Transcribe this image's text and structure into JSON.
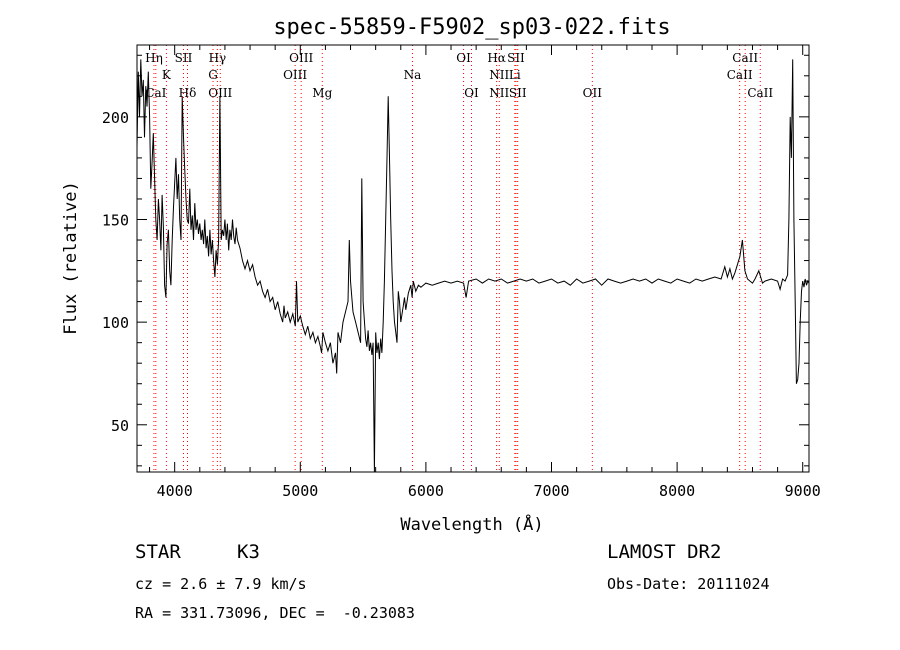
{
  "chart_data": {
    "type": "line",
    "title": "spec-55859-F5902_sp03-022.fits",
    "xlabel": "Wavelength (Å)",
    "ylabel": "Flux (relative)",
    "xlim": [
      3700,
      9050
    ],
    "ylim": [
      27,
      235
    ],
    "x_ticks": [
      4000,
      5000,
      6000,
      7000,
      8000,
      9000
    ],
    "y_ticks": [
      50,
      100,
      150,
      200
    ],
    "grid": false,
    "line_color": "#000000",
    "marker_color": "#ff0000",
    "spectrum": [
      [
        3700,
        185
      ],
      [
        3710,
        222
      ],
      [
        3720,
        200
      ],
      [
        3730,
        228
      ],
      [
        3740,
        210
      ],
      [
        3750,
        218
      ],
      [
        3760,
        190
      ],
      [
        3770,
        215
      ],
      [
        3780,
        205
      ],
      [
        3790,
        222
      ],
      [
        3800,
        200
      ],
      [
        3810,
        165
      ],
      [
        3820,
        178
      ],
      [
        3830,
        192
      ],
      [
        3840,
        170
      ],
      [
        3850,
        150
      ],
      [
        3860,
        140
      ],
      [
        3870,
        160
      ],
      [
        3880,
        150
      ],
      [
        3890,
        135
      ],
      [
        3900,
        162
      ],
      [
        3910,
        146
      ],
      [
        3920,
        118
      ],
      [
        3930,
        112
      ],
      [
        3940,
        138
      ],
      [
        3950,
        145
      ],
      [
        3960,
        125
      ],
      [
        3970,
        118
      ],
      [
        3980,
        140
      ],
      [
        3990,
        155
      ],
      [
        4000,
        168
      ],
      [
        4010,
        180
      ],
      [
        4020,
        160
      ],
      [
        4030,
        172
      ],
      [
        4040,
        150
      ],
      [
        4050,
        140
      ],
      [
        4060,
        210
      ],
      [
        4070,
        190
      ],
      [
        4080,
        175
      ],
      [
        4090,
        160
      ],
      [
        4100,
        150
      ],
      [
        4110,
        148
      ],
      [
        4120,
        165
      ],
      [
        4130,
        145
      ],
      [
        4140,
        152
      ],
      [
        4150,
        140
      ],
      [
        4160,
        158
      ],
      [
        4170,
        145
      ],
      [
        4180,
        150
      ],
      [
        4190,
        143
      ],
      [
        4200,
        148
      ],
      [
        4210,
        140
      ],
      [
        4220,
        145
      ],
      [
        4230,
        138
      ],
      [
        4240,
        150
      ],
      [
        4250,
        136
      ],
      [
        4260,
        142
      ],
      [
        4270,
        132
      ],
      [
        4280,
        145
      ],
      [
        4290,
        133
      ],
      [
        4300,
        140
      ],
      [
        4310,
        130
      ],
      [
        4320,
        122
      ],
      [
        4330,
        135
      ],
      [
        4340,
        128
      ],
      [
        4350,
        140
      ],
      [
        4360,
        210
      ],
      [
        4370,
        140
      ],
      [
        4380,
        145
      ],
      [
        4390,
        142
      ],
      [
        4400,
        150
      ],
      [
        4410,
        140
      ],
      [
        4420,
        148
      ],
      [
        4430,
        135
      ],
      [
        4440,
        145
      ],
      [
        4450,
        140
      ],
      [
        4460,
        150
      ],
      [
        4470,
        142
      ],
      [
        4480,
        138
      ],
      [
        4490,
        146
      ],
      [
        4500,
        140
      ],
      [
        4520,
        136
      ],
      [
        4540,
        130
      ],
      [
        4560,
        126
      ],
      [
        4580,
        130
      ],
      [
        4600,
        125
      ],
      [
        4620,
        128
      ],
      [
        4640,
        122
      ],
      [
        4660,
        118
      ],
      [
        4680,
        120
      ],
      [
        4700,
        115
      ],
      [
        4720,
        112
      ],
      [
        4740,
        116
      ],
      [
        4760,
        110
      ],
      [
        4780,
        112
      ],
      [
        4800,
        106
      ],
      [
        4820,
        110
      ],
      [
        4840,
        104
      ],
      [
        4860,
        100
      ],
      [
        4870,
        108
      ],
      [
        4880,
        102
      ],
      [
        4900,
        105
      ],
      [
        4920,
        100
      ],
      [
        4940,
        104
      ],
      [
        4960,
        98
      ],
      [
        4970,
        120
      ],
      [
        4980,
        100
      ],
      [
        5000,
        103
      ],
      [
        5020,
        98
      ],
      [
        5040,
        94
      ],
      [
        5060,
        98
      ],
      [
        5080,
        92
      ],
      [
        5100,
        95
      ],
      [
        5120,
        90
      ],
      [
        5140,
        93
      ],
      [
        5160,
        88
      ],
      [
        5170,
        85
      ],
      [
        5180,
        95
      ],
      [
        5200,
        90
      ],
      [
        5220,
        86
      ],
      [
        5240,
        90
      ],
      [
        5260,
        80
      ],
      [
        5280,
        85
      ],
      [
        5290,
        75
      ],
      [
        5300,
        95
      ],
      [
        5320,
        90
      ],
      [
        5340,
        100
      ],
      [
        5360,
        105
      ],
      [
        5380,
        110
      ],
      [
        5390,
        140
      ],
      [
        5400,
        120
      ],
      [
        5420,
        105
      ],
      [
        5440,
        100
      ],
      [
        5460,
        95
      ],
      [
        5480,
        90
      ],
      [
        5490,
        170
      ],
      [
        5500,
        110
      ],
      [
        5520,
        92
      ],
      [
        5530,
        88
      ],
      [
        5540,
        96
      ],
      [
        5550,
        86
      ],
      [
        5560,
        90
      ],
      [
        5570,
        84
      ],
      [
        5580,
        90
      ],
      [
        5590,
        27
      ],
      [
        5600,
        95
      ],
      [
        5610,
        85
      ],
      [
        5620,
        90
      ],
      [
        5630,
        82
      ],
      [
        5640,
        92
      ],
      [
        5650,
        85
      ],
      [
        5660,
        100
      ],
      [
        5670,
        120
      ],
      [
        5680,
        150
      ],
      [
        5690,
        180
      ],
      [
        5700,
        210
      ],
      [
        5710,
        180
      ],
      [
        5720,
        150
      ],
      [
        5730,
        125
      ],
      [
        5740,
        110
      ],
      [
        5750,
        100
      ],
      [
        5760,
        95
      ],
      [
        5770,
        90
      ],
      [
        5780,
        115
      ],
      [
        5790,
        110
      ],
      [
        5800,
        100
      ],
      [
        5820,
        108
      ],
      [
        5830,
        112
      ],
      [
        5840,
        106
      ],
      [
        5860,
        114
      ],
      [
        5880,
        118
      ],
      [
        5890,
        112
      ],
      [
        5900,
        120
      ],
      [
        5920,
        115
      ],
      [
        5940,
        118
      ],
      [
        5960,
        117
      ],
      [
        6000,
        119
      ],
      [
        6050,
        118
      ],
      [
        6100,
        119
      ],
      [
        6150,
        120
      ],
      [
        6200,
        119
      ],
      [
        6250,
        120
      ],
      [
        6300,
        119
      ],
      [
        6320,
        112
      ],
      [
        6340,
        120
      ],
      [
        6400,
        121
      ],
      [
        6450,
        119
      ],
      [
        6500,
        121
      ],
      [
        6550,
        120
      ],
      [
        6600,
        121
      ],
      [
        6650,
        119
      ],
      [
        6700,
        120
      ],
      [
        6750,
        121
      ],
      [
        6800,
        120
      ],
      [
        6850,
        121
      ],
      [
        6900,
        119
      ],
      [
        6950,
        120
      ],
      [
        7000,
        121
      ],
      [
        7050,
        119
      ],
      [
        7100,
        120
      ],
      [
        7150,
        118
      ],
      [
        7200,
        121
      ],
      [
        7250,
        119
      ],
      [
        7300,
        120
      ],
      [
        7350,
        121
      ],
      [
        7400,
        118
      ],
      [
        7450,
        121
      ],
      [
        7500,
        120
      ],
      [
        7550,
        119
      ],
      [
        7600,
        120
      ],
      [
        7650,
        121
      ],
      [
        7700,
        120
      ],
      [
        7750,
        121
      ],
      [
        7800,
        119
      ],
      [
        7850,
        121
      ],
      [
        7900,
        120
      ],
      [
        7950,
        119
      ],
      [
        8000,
        121
      ],
      [
        8050,
        120
      ],
      [
        8100,
        119
      ],
      [
        8150,
        121
      ],
      [
        8200,
        120
      ],
      [
        8250,
        121
      ],
      [
        8300,
        122
      ],
      [
        8350,
        121
      ],
      [
        8380,
        127
      ],
      [
        8400,
        122
      ],
      [
        8420,
        126
      ],
      [
        8440,
        121
      ],
      [
        8460,
        124
      ],
      [
        8480,
        128
      ],
      [
        8500,
        132
      ],
      [
        8520,
        140
      ],
      [
        8540,
        125
      ],
      [
        8560,
        121
      ],
      [
        8580,
        120
      ],
      [
        8600,
        119
      ],
      [
        8620,
        121
      ],
      [
        8650,
        125
      ],
      [
        8680,
        119
      ],
      [
        8700,
        120
      ],
      [
        8750,
        121
      ],
      [
        8800,
        120
      ],
      [
        8820,
        116
      ],
      [
        8840,
        121
      ],
      [
        8860,
        120
      ],
      [
        8880,
        123
      ],
      [
        8890,
        150
      ],
      [
        8900,
        200
      ],
      [
        8910,
        180
      ],
      [
        8920,
        228
      ],
      [
        8930,
        150
      ],
      [
        8940,
        110
      ],
      [
        8950,
        70
      ],
      [
        8960,
        72
      ],
      [
        8970,
        80
      ],
      [
        8980,
        100
      ],
      [
        8990,
        115
      ],
      [
        9000,
        120
      ],
      [
        9010,
        117
      ],
      [
        9020,
        121
      ],
      [
        9030,
        118
      ],
      [
        9040,
        120
      ],
      [
        9050,
        119
      ]
    ],
    "line_markers": [
      {
        "label": "Hη",
        "x": 3835,
        "row": 1
      },
      {
        "label": "K",
        "x": 3934,
        "row": 2
      },
      {
        "label": "CaI",
        "x": 3850,
        "row": 3
      },
      {
        "label": "SII",
        "x": 4070,
        "row": 1
      },
      {
        "label": "Hδ",
        "x": 4102,
        "row": 3
      },
      {
        "label": "Hγ",
        "x": 4340,
        "row": 1
      },
      {
        "label": "G",
        "x": 4305,
        "row": 2
      },
      {
        "label": "OIII",
        "x": 4363,
        "row": 3
      },
      {
        "label": "OIII",
        "x": 5007,
        "row": 1
      },
      {
        "label": "OIII",
        "x": 4959,
        "row": 2
      },
      {
        "label": "Mg",
        "x": 5175,
        "row": 3
      },
      {
        "label": "Na",
        "x": 5893,
        "row": 2
      },
      {
        "label": "OI",
        "x": 6300,
        "row": 1
      },
      {
        "label": "OI",
        "x": 6363,
        "row": 3
      },
      {
        "label": "Hα",
        "x": 6563,
        "row": 1
      },
      {
        "label": "SII",
        "x": 6717,
        "row": 1
      },
      {
        "label": "NII",
        "x": 6584,
        "row": 2
      },
      {
        "label": "Li",
        "x": 6708,
        "row": 2
      },
      {
        "label": "NII",
        "x": 6584,
        "row": 3
      },
      {
        "label": "SII",
        "x": 6731,
        "row": 3
      },
      {
        "label": "OII",
        "x": 7325,
        "row": 3
      },
      {
        "label": "CaII",
        "x": 8542,
        "row": 1
      },
      {
        "label": "CaII",
        "x": 8498,
        "row": 2
      },
      {
        "label": "CaII",
        "x": 8662,
        "row": 3
      }
    ]
  },
  "info": {
    "class_label": "STAR",
    "subclass": "K3",
    "survey": "LAMOST DR2",
    "cz_line": "cz = 2.6 ± 7.9 km/s",
    "obs_date": "Obs-Date: 20111024",
    "coords": "RA = 331.73096, DEC =  -0.23083"
  }
}
